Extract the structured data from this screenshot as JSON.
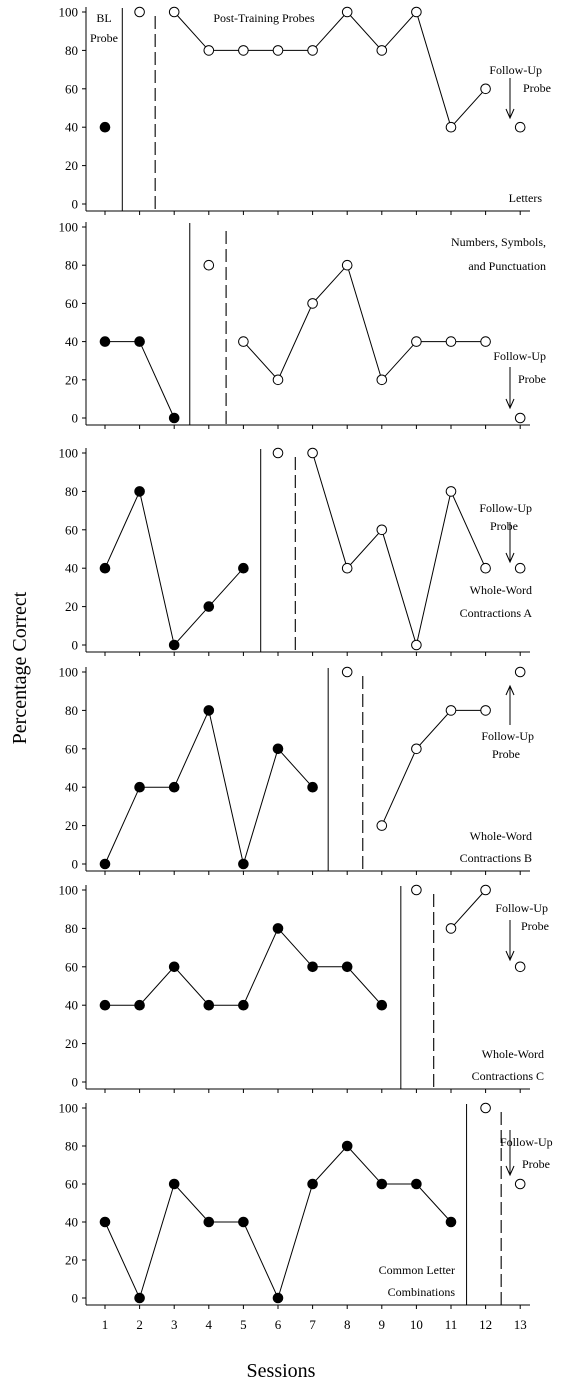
{
  "chart_data": {
    "type": "line",
    "xlabel": "Sessions",
    "ylabel": "Percentage Correct",
    "x": [
      1,
      2,
      3,
      4,
      5,
      6,
      7,
      8,
      9,
      10,
      11,
      12,
      13
    ],
    "xlim": [
      0.5,
      13.9
    ],
    "ylim": [
      0,
      100
    ],
    "yticks": [
      0,
      20,
      40,
      60,
      80,
      100
    ],
    "markers": {
      "filled": "baseline",
      "open": "post-training / follow-up probe"
    },
    "panels": [
      {
        "label": "Letters",
        "baseline": [
          [
            1,
            40
          ]
        ],
        "post": [
          [
            2,
            100
          ]
        ],
        "post_line": [
          [
            3,
            100
          ],
          [
            4,
            80
          ],
          [
            5,
            80
          ],
          [
            6,
            80
          ],
          [
            7,
            80
          ],
          [
            8,
            100
          ],
          [
            9,
            80
          ],
          [
            10,
            100
          ],
          [
            11,
            40
          ],
          [
            12,
            60
          ]
        ],
        "follow_up": [
          [
            13,
            40
          ]
        ],
        "solid_phase_x": 1.5,
        "dashed_phase_x": 2.45,
        "annotations": [
          "BL",
          "Probe",
          "Post-Training Probes",
          "Follow-Up",
          "Probe"
        ]
      },
      {
        "label": "Numbers, Symbols, and Punctuation",
        "label_lines": [
          "Numbers, Symbols,",
          "and Punctuation"
        ],
        "baseline": [
          [
            1,
            40
          ],
          [
            2,
            40
          ],
          [
            3,
            0
          ]
        ],
        "post": [
          [
            4,
            80
          ]
        ],
        "post_line": [
          [
            5,
            40
          ],
          [
            6,
            20
          ],
          [
            7,
            60
          ],
          [
            8,
            80
          ],
          [
            9,
            20
          ],
          [
            10,
            40
          ],
          [
            11,
            40
          ],
          [
            12,
            40
          ]
        ],
        "follow_up": [
          [
            13,
            0
          ]
        ],
        "solid_phase_x": 3.45,
        "dashed_phase_x": 4.5,
        "annotations": [
          "Follow-Up",
          "Probe"
        ]
      },
      {
        "label": "Whole-Word Contractions A",
        "label_lines": [
          "Whole-Word",
          "Contractions A"
        ],
        "baseline": [
          [
            1,
            40
          ],
          [
            2,
            80
          ],
          [
            3,
            0
          ],
          [
            4,
            20
          ],
          [
            5,
            40
          ]
        ],
        "post": [
          [
            6,
            100
          ]
        ],
        "post_line": [
          [
            7,
            100
          ],
          [
            8,
            40
          ],
          [
            9,
            60
          ],
          [
            10,
            0
          ],
          [
            11,
            80
          ],
          [
            12,
            40
          ]
        ],
        "follow_up": [
          [
            13,
            40
          ]
        ],
        "solid_phase_x": 5.5,
        "dashed_phase_x": 6.5,
        "annotations": [
          "Follow-Up",
          "Probe"
        ]
      },
      {
        "label": "Whole-Word Contractions B",
        "label_lines": [
          "Whole-Word",
          "Contractions B"
        ],
        "baseline": [
          [
            1,
            0
          ],
          [
            2,
            40
          ],
          [
            3,
            40
          ],
          [
            4,
            80
          ],
          [
            5,
            0
          ],
          [
            6,
            60
          ],
          [
            7,
            40
          ]
        ],
        "post": [
          [
            8,
            100
          ]
        ],
        "post_line": [
          [
            9,
            20
          ],
          [
            10,
            60
          ],
          [
            11,
            80
          ],
          [
            12,
            80
          ]
        ],
        "follow_up": [
          [
            13,
            100
          ]
        ],
        "solid_phase_x": 7.45,
        "dashed_phase_x": 8.45,
        "annotations": [
          "Follow-Up",
          "Probe"
        ]
      },
      {
        "label": "Whole-Word Contractions C",
        "label_lines": [
          "Whole-Word",
          "Contractions C"
        ],
        "baseline": [
          [
            1,
            40
          ],
          [
            2,
            40
          ],
          [
            3,
            60
          ],
          [
            4,
            40
          ],
          [
            5,
            40
          ],
          [
            6,
            80
          ],
          [
            7,
            60
          ],
          [
            8,
            60
          ],
          [
            9,
            40
          ]
        ],
        "post": [
          [
            10,
            100
          ]
        ],
        "post_line": [
          [
            11,
            80
          ],
          [
            12,
            100
          ]
        ],
        "follow_up": [
          [
            13,
            60
          ]
        ],
        "solid_phase_x": 9.55,
        "dashed_phase_x": 10.5,
        "annotations": [
          "Follow-Up",
          "Probe"
        ]
      },
      {
        "label": "Common Letter Combinations",
        "label_lines": [
          "Common Letter",
          "Combinations"
        ],
        "baseline": [
          [
            1,
            40
          ],
          [
            2,
            0
          ],
          [
            3,
            60
          ],
          [
            4,
            40
          ],
          [
            5,
            40
          ],
          [
            6,
            0
          ],
          [
            7,
            60
          ],
          [
            8,
            80
          ],
          [
            9,
            60
          ],
          [
            10,
            60
          ],
          [
            11,
            40
          ]
        ],
        "post": [
          [
            12,
            100
          ]
        ],
        "post_line": [],
        "follow_up": [
          [
            13,
            60
          ]
        ],
        "solid_phase_x": 11.45,
        "dashed_phase_x": 12.45,
        "annotations": [
          "Follow-Up",
          "Probe"
        ]
      }
    ]
  }
}
